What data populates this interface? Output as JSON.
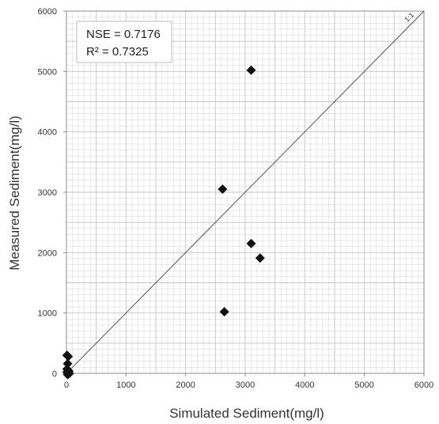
{
  "chart_data": {
    "type": "scatter",
    "xlabel": "Simulated Sediment(mg/l)",
    "ylabel": "Measured Sediment(mg/l)",
    "xlim": [
      0,
      6000
    ],
    "ylim": [
      0,
      6000
    ],
    "xticks": [
      "0",
      "1000",
      "2000",
      "3000",
      "4000",
      "5000",
      "6000"
    ],
    "yticks": [
      "0",
      "1000",
      "2000",
      "3000",
      "4000",
      "5000",
      "6000"
    ],
    "grid": true,
    "reference_line_label": "1:1",
    "stats": {
      "nse": "NSE = 0.7176",
      "r2": "R² = 0.7325"
    },
    "points": [
      {
        "x": 3100,
        "y": 5020
      },
      {
        "x": 2620,
        "y": 3050
      },
      {
        "x": 3100,
        "y": 2150
      },
      {
        "x": 3250,
        "y": 1910
      },
      {
        "x": 2650,
        "y": 1020
      },
      {
        "x": 10,
        "y": 300
      },
      {
        "x": 30,
        "y": 280
      },
      {
        "x": 20,
        "y": 160
      },
      {
        "x": 10,
        "y": 70
      },
      {
        "x": 40,
        "y": 40
      },
      {
        "x": 10,
        "y": 20
      },
      {
        "x": 50,
        "y": 0
      },
      {
        "x": 20,
        "y": -20
      }
    ],
    "colors": {
      "marker": "#111111",
      "grid": "#d4d4d4",
      "axis": "#8c8c8c",
      "line": "#555555"
    }
  }
}
